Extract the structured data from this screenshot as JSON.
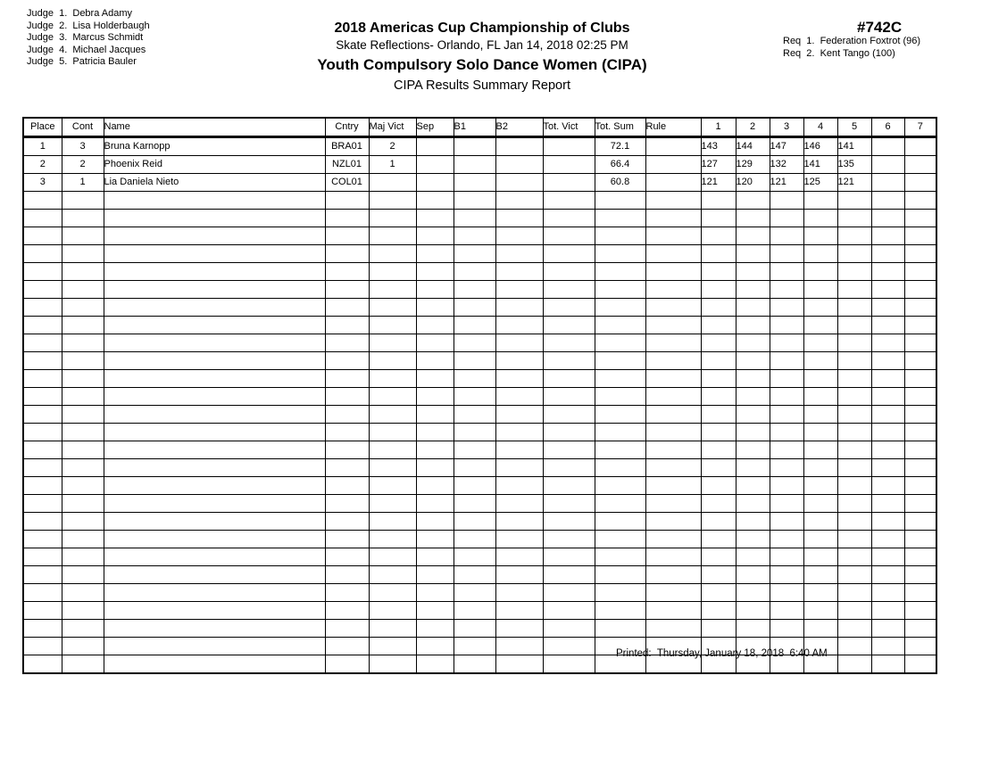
{
  "judges": [
    "Judge  1.  Debra Adamy",
    "Judge  2.  Lisa Holderbaugh",
    "Judge  3.  Marcus Schmidt",
    "Judge  4.  Michael Jacques",
    "Judge  5.  Patricia Bauler"
  ],
  "header": {
    "competition_title": "2018 Americas Cup Championship of Clubs",
    "venue_date": "Skate Reflections- Orlando, FL  Jan 14, 2018  02:25 PM",
    "event_title": "Youth Compulsory Solo Dance Women (CIPA)",
    "report_title": "CIPA Results Summary Report",
    "event_number": "#742C",
    "requirements": [
      "Req  1.  Federation Foxtrot (96)",
      "Req  2.  Kent Tango (100)"
    ]
  },
  "table": {
    "headers": [
      "Place",
      "Cont",
      "Name",
      "Cntry",
      "Maj Vict",
      "Sep",
      "B1",
      "B2",
      "Tot. Vict",
      "Tot. Sum",
      "Rule",
      "1",
      "2",
      "3",
      "4",
      "5",
      "6",
      "7"
    ],
    "rows": [
      {
        "place": "1",
        "cont": "3",
        "name": "Bruna Karnopp",
        "cntry": "BRA01",
        "maj_vict": "2",
        "sep": "",
        "b1": "",
        "b2": "",
        "tot_vict": "",
        "tot_sum": "72.1",
        "rule": "",
        "scores": [
          "143",
          "144",
          "147",
          "146",
          "141",
          "",
          ""
        ]
      },
      {
        "place": "2",
        "cont": "2",
        "name": "Phoenix Reid",
        "cntry": "NZL01",
        "maj_vict": "1",
        "sep": "",
        "b1": "",
        "b2": "",
        "tot_vict": "",
        "tot_sum": "66.4",
        "rule": "",
        "scores": [
          "127",
          "129",
          "132",
          "141",
          "135",
          "",
          ""
        ]
      },
      {
        "place": "3",
        "cont": "1",
        "name": "Lia Daniela Nieto",
        "cntry": "COL01",
        "maj_vict": "",
        "sep": "",
        "b1": "",
        "b2": "",
        "tot_vict": "",
        "tot_sum": "60.8",
        "rule": "",
        "scores": [
          "121",
          "120",
          "121",
          "125",
          "121",
          "",
          ""
        ]
      }
    ],
    "empty_row_count": 27
  },
  "footer": {
    "printed": "Printed:  Thursday, January 18, 2018  6:40 AM"
  }
}
